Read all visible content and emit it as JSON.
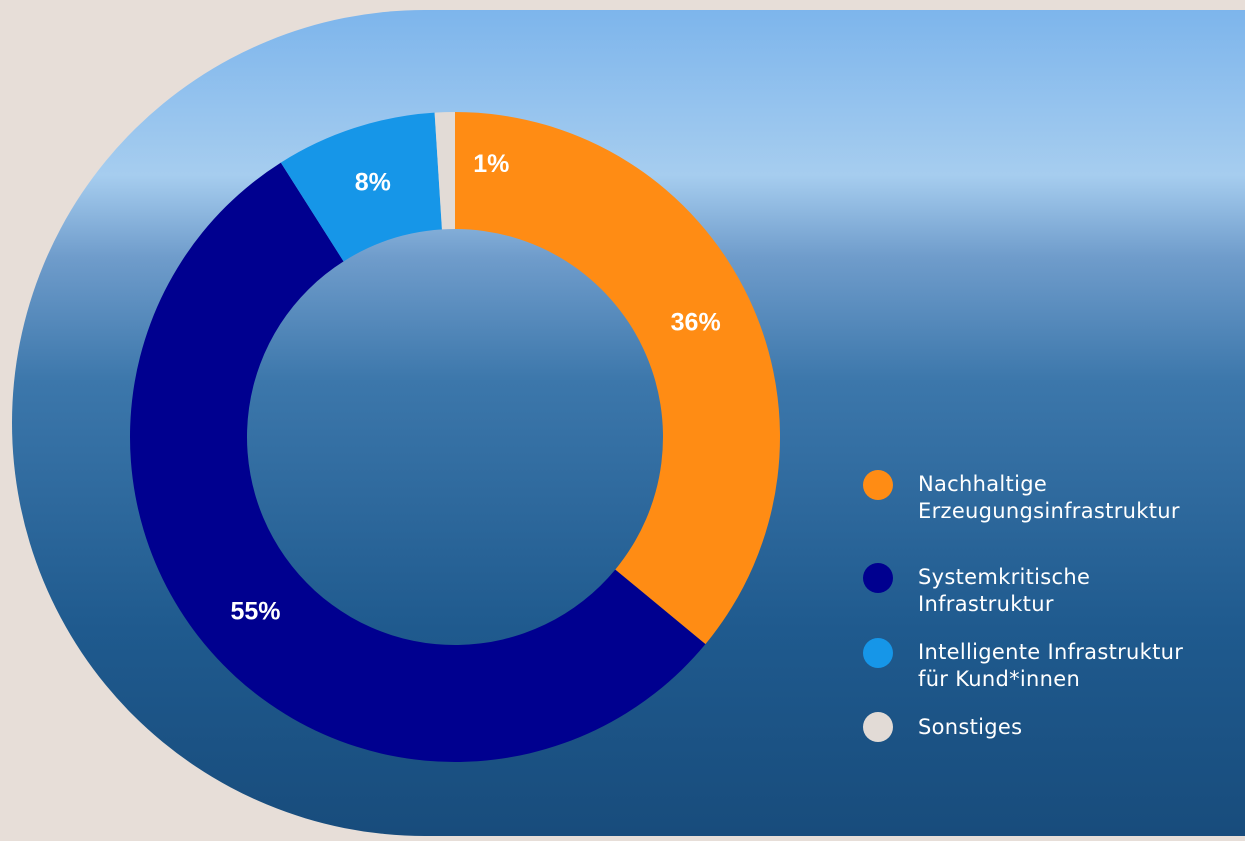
{
  "chart_data": {
    "type": "donut",
    "categories": [
      "Nachhaltige\nErzeugungsinfrastruktur",
      "Systemkritische\nInfrastruktur",
      "Intelligente Infrastruktur\nfür Kund*innen",
      "Sonstiges"
    ],
    "values": [
      36,
      55,
      8,
      1
    ],
    "value_labels": [
      "36%",
      "55%",
      "8%",
      "1%"
    ],
    "colors": [
      "#ff8c14",
      "#00008f",
      "#1696e8",
      "#e2dbd6"
    ]
  }
}
